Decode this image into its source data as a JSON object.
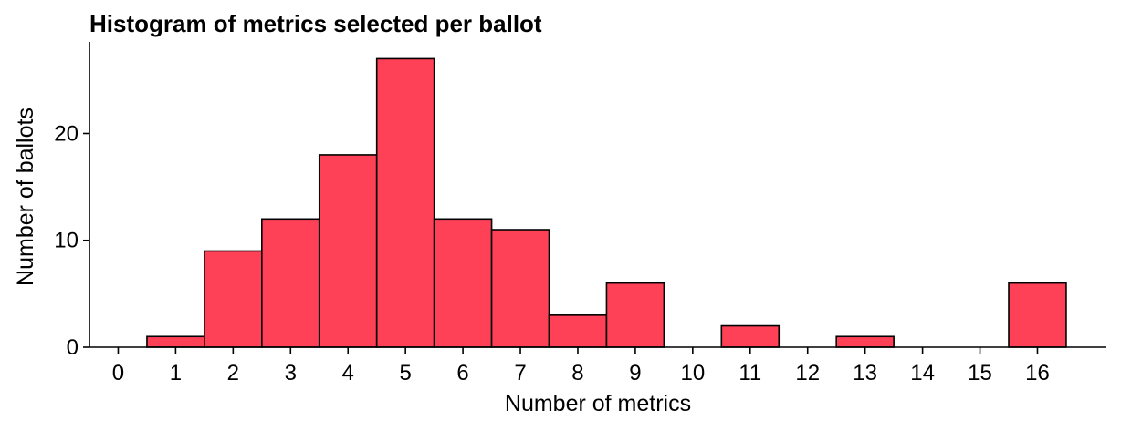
{
  "chart_data": {
    "type": "bar",
    "title": "Histogram of metrics selected per ballot",
    "xlabel": "Number of metrics",
    "ylabel": "Number of ballots",
    "categories": [
      1,
      2,
      3,
      4,
      5,
      6,
      7,
      8,
      9,
      11,
      13,
      16
    ],
    "values": [
      1,
      9,
      12,
      18,
      27,
      12,
      11,
      3,
      6,
      2,
      1,
      6
    ],
    "xticks": [
      "0",
      "1",
      "2",
      "3",
      "4",
      "5",
      "6",
      "7",
      "8",
      "9",
      "10",
      "11",
      "12",
      "13",
      "14",
      "15",
      "16"
    ],
    "yticks": [
      "0",
      "10",
      "20"
    ],
    "xlim": [
      -0.5,
      17.2
    ],
    "ylim": [
      0,
      28.4
    ],
    "bar_color": "#ff4157",
    "edge_color": "#000000",
    "grid": false,
    "legend": "none"
  }
}
